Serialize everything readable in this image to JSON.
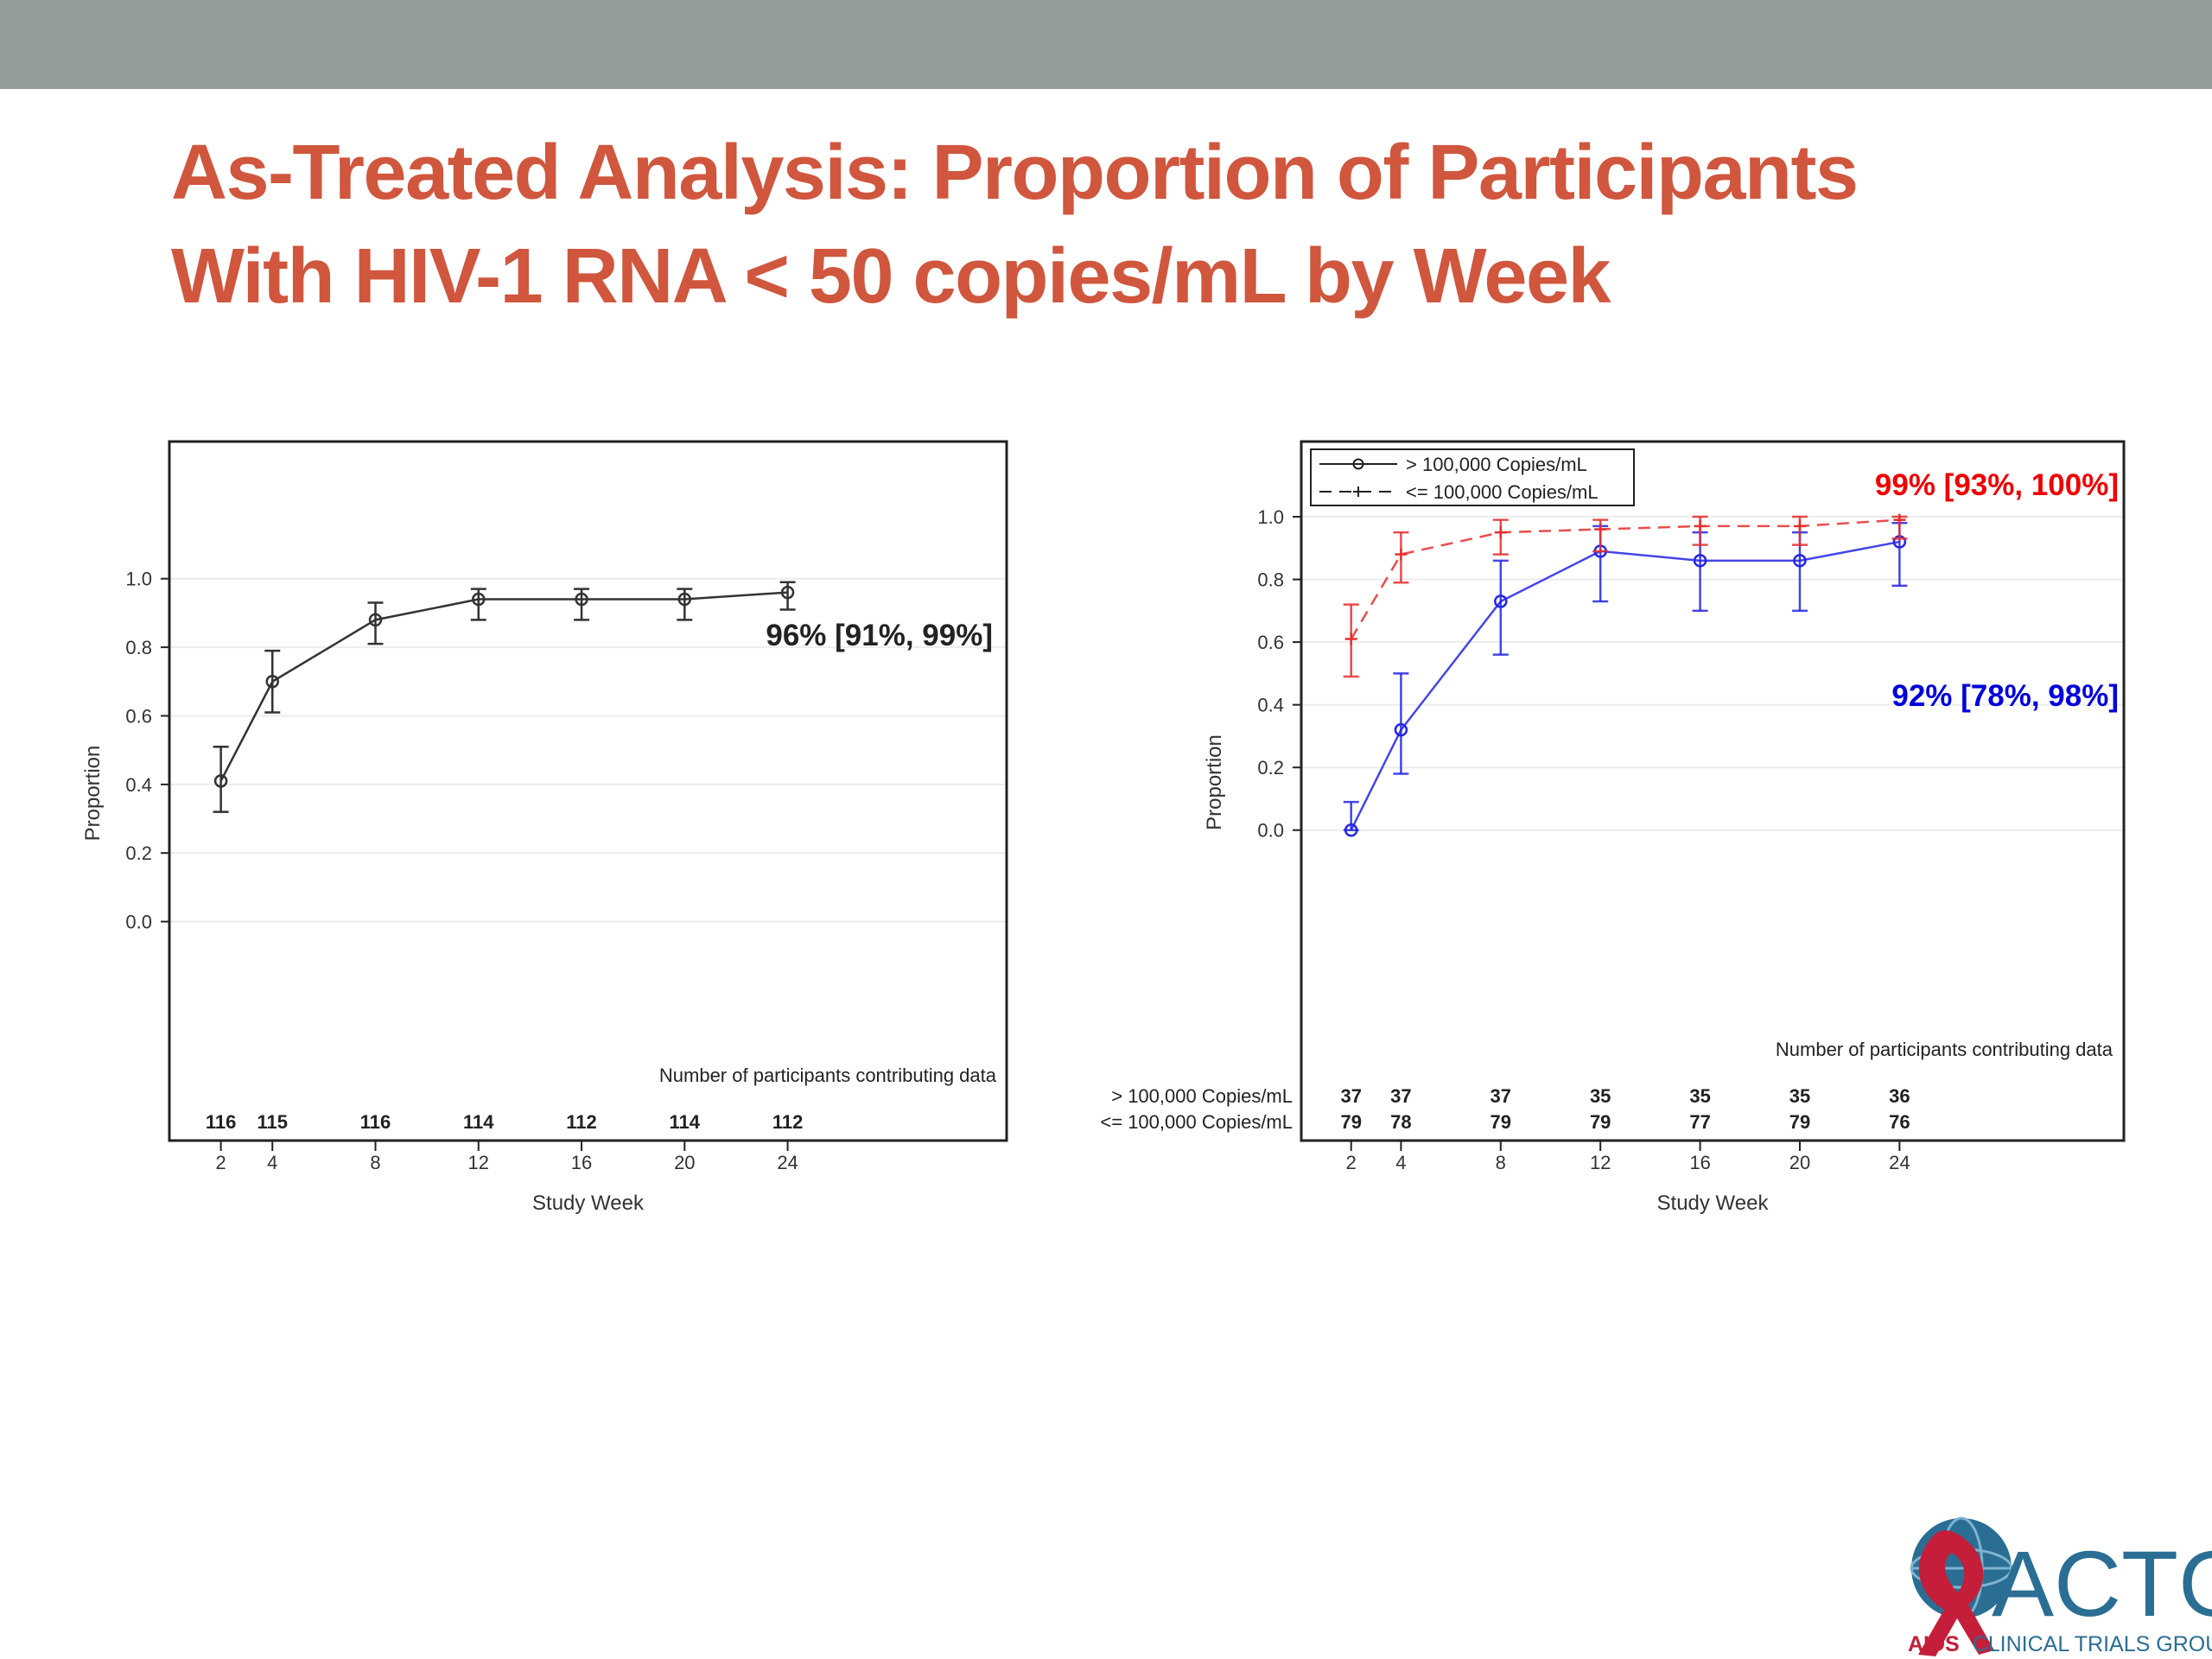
{
  "slide": {
    "title_line1": "As-Treated Analysis: Proportion of Participants",
    "title_line2": "With HIV-1 RNA < 50 copies/mL by Week",
    "header_color": "#929e97",
    "title_color": "#d0563d"
  },
  "chart_data": [
    {
      "type": "line",
      "xlabel": "Study Week",
      "ylabel": "Proportion",
      "yticks": [
        "0.0",
        "0.2",
        "0.4",
        "0.6",
        "0.8",
        "1.0"
      ],
      "xticks": [
        "2",
        "4",
        "8",
        "12",
        "16",
        "20",
        "24"
      ],
      "x": [
        2,
        4,
        8,
        12,
        16,
        20,
        24
      ],
      "series": [
        {
          "color": "#333333",
          "values": [
            0.41,
            0.7,
            0.88,
            0.94,
            0.94,
            0.94,
            0.96
          ],
          "lower": [
            0.32,
            0.61,
            0.81,
            0.88,
            0.88,
            0.88,
            0.91
          ],
          "upper": [
            0.51,
            0.79,
            0.93,
            0.97,
            0.97,
            0.97,
            0.99
          ]
        }
      ],
      "annotation": "96% [91%, 99%]",
      "counts_title": "Number of participants contributing data",
      "counts": [
        {
          "label": "",
          "values": [
            "116",
            "115",
            "116",
            "114",
            "112",
            "114",
            "112"
          ]
        }
      ]
    },
    {
      "type": "line",
      "xlabel": "Study Week",
      "ylabel": "Proportion",
      "yticks": [
        "0.0",
        "0.2",
        "0.4",
        "0.6",
        "0.8",
        "1.0"
      ],
      "xticks": [
        "2",
        "4",
        "8",
        "12",
        "16",
        "20",
        "24"
      ],
      "x": [
        2,
        4,
        8,
        12,
        16,
        20,
        24
      ],
      "legend": [
        "> 100,000 Copies/mL",
        "<= 100,000 Copies/mL"
      ],
      "series": [
        {
          "name": "> 100,000 Copies/mL",
          "color": "#2525e6",
          "values": [
            0.0,
            0.32,
            0.73,
            0.89,
            0.86,
            0.86,
            0.92
          ],
          "lower": [
            0.0,
            0.18,
            0.56,
            0.73,
            0.7,
            0.7,
            0.78
          ],
          "upper": [
            0.09,
            0.5,
            0.86,
            0.97,
            0.95,
            0.95,
            0.98
          ]
        },
        {
          "name": "<= 100,000 Copies/mL",
          "color": "#e52e2e",
          "values": [
            0.61,
            0.88,
            0.95,
            0.96,
            0.97,
            0.97,
            0.99
          ],
          "lower": [
            0.49,
            0.79,
            0.88,
            0.89,
            0.91,
            0.91,
            0.93
          ],
          "upper": [
            0.72,
            0.95,
            0.99,
            0.99,
            1.0,
            1.0,
            1.0
          ]
        }
      ],
      "annotations": [
        {
          "text": "99% [93%, 100%]",
          "color": "#ee0000"
        },
        {
          "text": "92% [78%, 98%]",
          "color": "#0000dd"
        }
      ],
      "counts_title": "Number of participants contributing data",
      "counts": [
        {
          "label": "> 100,000 Copies/mL",
          "values": [
            "37",
            "37",
            "37",
            "35",
            "35",
            "35",
            "36"
          ]
        },
        {
          "label": "<= 100,000 Copies/mL",
          "values": [
            "79",
            "78",
            "79",
            "79",
            "77",
            "79",
            "76"
          ]
        }
      ]
    }
  ],
  "logo": {
    "name": "ACTG",
    "subtitle_prefix": "AIDS",
    "subtitle_rest": "CLINICAL TRIALS GROUP"
  }
}
